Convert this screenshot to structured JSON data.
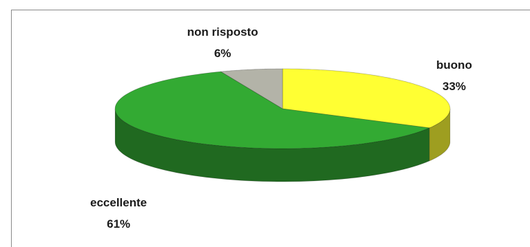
{
  "chart_data": {
    "type": "pie",
    "style": "3d",
    "title": "",
    "slices": [
      {
        "label": "buono",
        "value": 33,
        "display": "33%",
        "color": "#ffff33"
      },
      {
        "label": "eccellente",
        "value": 61,
        "display": "61%",
        "color": "#33aa33"
      },
      {
        "label": "non risposto",
        "value": 6,
        "display": "6%",
        "color": "#b3b3a8"
      }
    ]
  }
}
